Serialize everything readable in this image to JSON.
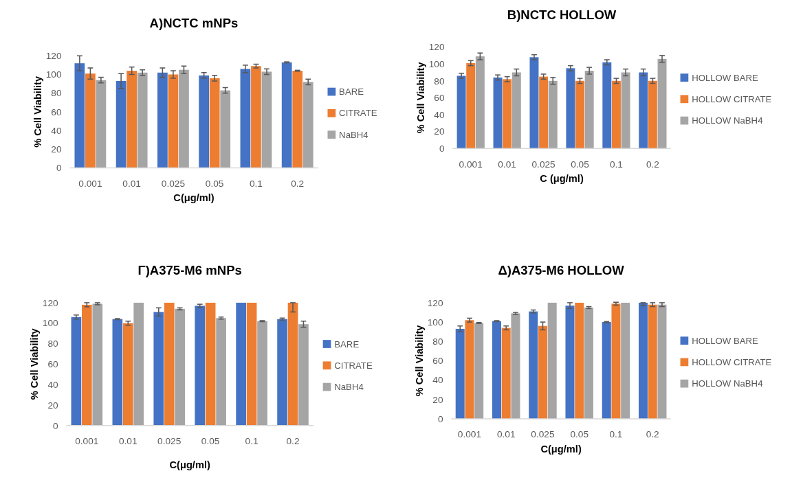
{
  "chart_data": [
    {
      "type": "bar",
      "title": "Α)NCTC mNPs",
      "xlabel": "C(μg/ml)",
      "ylabel": "% Cell Viability",
      "categories": [
        "0.001",
        "0.01",
        "0.025",
        "0.05",
        "0.1",
        "0.2"
      ],
      "ylim": [
        0,
        120
      ],
      "yticks": [
        0,
        20,
        40,
        60,
        80,
        100,
        120
      ],
      "legend": "right",
      "grid": false,
      "series": [
        {
          "name": "BARE",
          "color": "#4472c4",
          "values": [
            112,
            93,
            102,
            99,
            106,
            113
          ],
          "errors": [
            8,
            8,
            5,
            3,
            4,
            0.5
          ]
        },
        {
          "name": "CITRATE",
          "color": "#ed7d31",
          "values": [
            101,
            104,
            100,
            96,
            109,
            104
          ],
          "errors": [
            6,
            4,
            4,
            3,
            2,
            0.5
          ]
        },
        {
          "name": "NaBH4",
          "color": "#a5a5a5",
          "values": [
            94,
            102,
            105,
            83,
            103,
            92
          ],
          "errors": [
            3,
            3,
            4,
            3,
            3,
            3
          ]
        }
      ]
    },
    {
      "type": "bar",
      "title": "Β)NCTC HOLLOW",
      "xlabel": "C (μg/ml)",
      "ylabel": "% Cell Viability",
      "categories": [
        "0.001",
        "0.01",
        "0.025",
        "0.05",
        "0.1",
        "0.2"
      ],
      "ylim": [
        0,
        120
      ],
      "yticks": [
        0,
        20,
        40,
        60,
        80,
        100,
        120
      ],
      "legend": "right",
      "grid": false,
      "series": [
        {
          "name": "HOLLOW BARE",
          "color": "#4472c4",
          "values": [
            86,
            84,
            108,
            95,
            102,
            90
          ],
          "errors": [
            3,
            3,
            3,
            3,
            3,
            4
          ]
        },
        {
          "name": "HOLLOW CITRATE",
          "color": "#ed7d31",
          "values": [
            101,
            82,
            85,
            80,
            80,
            80
          ],
          "errors": [
            3,
            3,
            3,
            3,
            3,
            3
          ]
        },
        {
          "name": "HOLLOW NaBH4",
          "color": "#a5a5a5",
          "values": [
            109,
            90,
            80,
            92,
            90,
            106
          ],
          "errors": [
            4,
            4,
            4,
            4,
            4,
            4
          ]
        }
      ]
    },
    {
      "type": "bar",
      "title": "Γ)A375-M6 mNPs",
      "xlabel": "C(μg/ml)",
      "ylabel": "% Cell Viability",
      "categories": [
        "0.001",
        "0.01",
        "0.025",
        "0.05",
        "0.1",
        "0.2"
      ],
      "ylim": [
        0,
        120
      ],
      "yticks": [
        0,
        20,
        40,
        60,
        80,
        100,
        120
      ],
      "legend": "right",
      "grid": false,
      "series": [
        {
          "name": "BARE",
          "color": "#4472c4",
          "values": [
            106,
            104,
            111,
            117,
            120,
            104
          ],
          "errors": [
            2,
            0.5,
            4,
            1.5,
            null,
            1
          ]
        },
        {
          "name": "CITRATE",
          "color": "#ed7d31",
          "values": [
            118,
            100,
            120,
            120,
            120,
            120
          ],
          "errors": [
            2,
            2,
            null,
            null,
            null,
            [
              111,
              120
            ]
          ]
        },
        {
          "name": "NaBH4",
          "color": "#a5a5a5",
          "values": [
            119,
            120,
            114,
            105,
            102,
            99
          ],
          "errors": [
            1,
            null,
            1,
            1,
            0.5,
            3
          ]
        }
      ]
    },
    {
      "type": "bar",
      "title": "Δ)A375-M6 HOLLOW",
      "xlabel": "C(μg/ml)",
      "ylabel": "% Cell Viability",
      "categories": [
        "0.001",
        "0.01",
        "0.025",
        "0.05",
        "0.1",
        "0.2"
      ],
      "ylim": [
        0,
        120
      ],
      "yticks": [
        0,
        20,
        40,
        60,
        80,
        100,
        120
      ],
      "legend": "right",
      "grid": false,
      "series": [
        {
          "name": "HOLLOW BARE",
          "color": "#4472c4",
          "values": [
            93,
            101,
            111,
            117,
            100,
            120
          ],
          "errors": [
            3,
            0.5,
            1.5,
            3,
            0.5,
            [
              117,
              120
            ]
          ]
        },
        {
          "name": "HOLLOW CITRATE",
          "color": "#ed7d31",
          "values": [
            102,
            94,
            96,
            120,
            119,
            118
          ],
          "errors": [
            2,
            2,
            4,
            null,
            1.5,
            2
          ]
        },
        {
          "name": "HOLLOW NaBH4",
          "color": "#a5a5a5",
          "values": [
            99,
            109,
            120,
            115,
            120,
            118
          ],
          "errors": [
            0.5,
            1,
            null,
            1,
            null,
            2
          ]
        }
      ]
    }
  ]
}
